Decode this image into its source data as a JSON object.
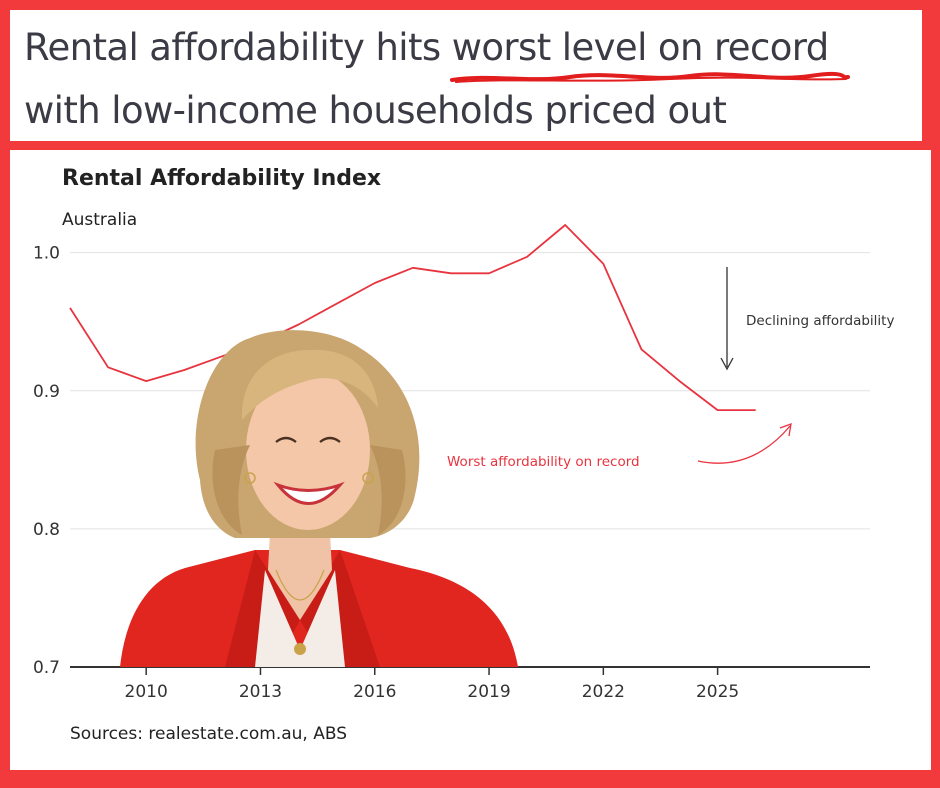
{
  "headline": {
    "part1": "Rental affordability hits ",
    "emphasis": "worst level on record",
    "line2": "with low-income households priced out"
  },
  "colors": {
    "background": "#f23a3c",
    "series": "#e8343f",
    "accent_underline": "#e11d1d"
  },
  "chart_data": {
    "type": "line",
    "title": "Rental Affordability Index",
    "subtitle": "Australia",
    "xlabel": "",
    "ylabel": "",
    "xlim": [
      2008,
      2029
    ],
    "ylim": [
      0.7,
      1.02
    ],
    "xticks": [
      2010,
      2013,
      2016,
      2019,
      2022,
      2025
    ],
    "xtick_labels": [
      "2010",
      "2013",
      "2016",
      "2019",
      "2022",
      "2025"
    ],
    "yticks": [
      0.7,
      0.8,
      0.9,
      1.0
    ],
    "ytick_labels": [
      "0.7",
      "0.8",
      "0.9",
      "1.0"
    ],
    "grid": true,
    "series": [
      {
        "name": "Rental Affordability Index",
        "x": [
          2008,
          2009,
          2010,
          2011,
          2012,
          2013,
          2014,
          2015,
          2016,
          2017,
          2018,
          2019,
          2020,
          2021,
          2022,
          2023,
          2024,
          2025,
          2026
        ],
        "values": [
          0.96,
          0.917,
          0.907,
          0.915,
          0.925,
          0.935,
          0.948,
          0.963,
          0.978,
          0.989,
          0.985,
          0.985,
          0.997,
          1.02,
          0.992,
          0.93,
          0.907,
          0.886,
          0.886
        ]
      }
    ],
    "annotations": {
      "declining": "Declining affordability",
      "worst": "Worst affordability on record"
    },
    "source": "Sources: realestate.com.au, ABS"
  }
}
